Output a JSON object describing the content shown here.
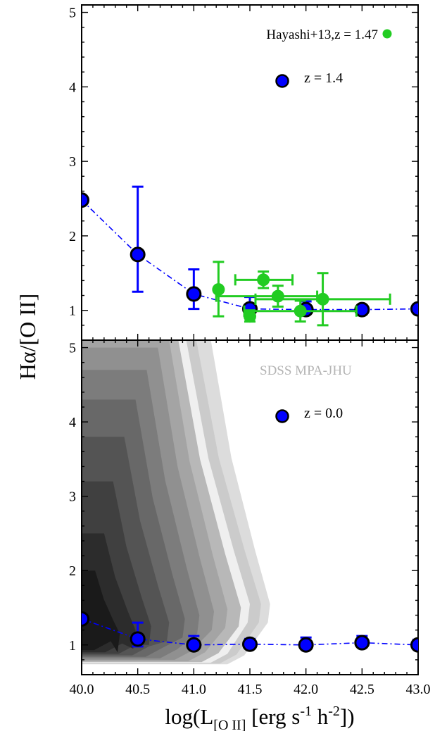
{
  "chart_data": [
    {
      "type": "scatter",
      "panel": "top",
      "x_ticks": [
        "40.0",
        "40.5",
        "41.0",
        "41.5",
        "42.0",
        "42.5",
        "43.0"
      ],
      "y_ticks": [
        "1",
        "2",
        "3",
        "4",
        "5"
      ],
      "xlim": [
        40.0,
        43.0
      ],
      "ylim": [
        0.6,
        5.1
      ],
      "series": [
        {
          "name": "z = 1.4",
          "color": "#0000ff",
          "marker": "blue-circle-black-edge",
          "line": "dash-dot",
          "points": [
            {
              "x": 40.0,
              "y": 2.48
            },
            {
              "x": 40.5,
              "y": 1.75,
              "yerr_lo": 1.25,
              "yerr_hi": 2.66
            },
            {
              "x": 41.0,
              "y": 1.22,
              "yerr_lo": 1.02,
              "yerr_hi": 1.55
            },
            {
              "x": 41.5,
              "y": 1.02,
              "yerr_lo": 0.92,
              "yerr_hi": 1.18
            },
            {
              "x": 42.0,
              "y": 1.01,
              "yerr_lo": 0.96,
              "yerr_hi": 1.12
            },
            {
              "x": 42.5,
              "y": 1.01
            },
            {
              "x": 43.0,
              "y": 1.02
            }
          ]
        },
        {
          "name": "Hayashi+13,z = 1.47",
          "color": "#22cc22",
          "marker": "green-circle",
          "points": [
            {
              "x": 41.22,
              "y": 1.28,
              "yerr_lo": 0.92,
              "yerr_hi": 1.65,
              "xerr_lo": 41.22,
              "xerr_hi": 41.22
            },
            {
              "x": 41.5,
              "y": 0.92,
              "yerr_lo": 0.85,
              "yerr_hi": 1.0,
              "xerr_lo": 41.5,
              "xerr_hi": 41.5
            },
            {
              "x": 41.62,
              "y": 1.41,
              "yerr_lo": 1.3,
              "yerr_hi": 1.52,
              "xerr_lo": 41.37,
              "xerr_hi": 41.88
            },
            {
              "x": 41.75,
              "y": 1.19,
              "yerr_lo": 1.05,
              "yerr_hi": 1.33,
              "xerr_lo": 41.2,
              "xerr_hi": 42.1
            },
            {
              "x": 41.95,
              "y": 0.99,
              "yerr_lo": 0.85,
              "yerr_hi": 1.13,
              "xerr_lo": 41.45,
              "xerr_hi": 42.45
            },
            {
              "x": 42.15,
              "y": 1.15,
              "yerr_lo": 0.8,
              "yerr_hi": 1.5,
              "xerr_lo": 41.55,
              "xerr_hi": 42.75
            }
          ]
        }
      ],
      "legend": [
        {
          "text": "Hayashi+13,z = 1.47",
          "marker": "green-circle",
          "placement": "top-right"
        },
        {
          "text": "z = 1.4",
          "marker": "blue-circle",
          "placement": "upper-middle"
        }
      ]
    },
    {
      "type": "scatter",
      "panel": "bottom",
      "x_ticks": [
        "40.0",
        "40.5",
        "41.0",
        "41.5",
        "42.0",
        "42.5",
        "43.0"
      ],
      "y_ticks": [
        "1",
        "2",
        "3",
        "4",
        "5"
      ],
      "xlim": [
        40.0,
        43.0
      ],
      "ylim": [
        0.6,
        5.1
      ],
      "series": [
        {
          "name": "z = 0.0",
          "color": "#0000ff",
          "marker": "blue-circle-black-edge",
          "line": "dash-dot",
          "points": [
            {
              "x": 40.0,
              "y": 1.35
            },
            {
              "x": 40.5,
              "y": 1.08,
              "yerr_lo": 0.98,
              "yerr_hi": 1.3
            },
            {
              "x": 41.0,
              "y": 1.0,
              "yerr_lo": 0.95,
              "yerr_hi": 1.12
            },
            {
              "x": 41.5,
              "y": 1.01,
              "yerr_lo": 0.97,
              "yerr_hi": 1.08
            },
            {
              "x": 42.0,
              "y": 1.0,
              "yerr_lo": 0.96,
              "yerr_hi": 1.1
            },
            {
              "x": 42.5,
              "y": 1.03,
              "yerr_lo": 0.98,
              "yerr_hi": 1.12
            },
            {
              "x": 43.0,
              "y": 1.0,
              "yerr_lo": 0.96,
              "yerr_hi": 1.07
            }
          ]
        }
      ],
      "contours": {
        "label": "SDSS MPA-JHU",
        "colors": [
          "#dcdcdc",
          "#cbcbcb",
          "#efefef",
          "#b8b8b8",
          "#a4a4a4",
          "#909090",
          "#7c7c7c",
          "#686868",
          "#545454",
          "#404040",
          "#2c2c2c",
          "#1a1a1a"
        ],
        "levels": [
          {
            "top": 5.12,
            "bottom": 0.74,
            "x_tip": 41.68,
            "y_tip": 1.55,
            "x_top": 41.15,
            "x_bot": 41.45
          },
          {
            "top": 5.12,
            "bottom": 0.75,
            "x_tip": 41.6,
            "y_tip": 1.55,
            "x_top": 41.02,
            "x_bot": 41.38
          },
          {
            "top": 5.12,
            "bottom": 0.76,
            "x_tip": 41.5,
            "y_tip": 1.55,
            "x_top": 40.93,
            "x_bot": 41.3
          },
          {
            "top": 5.12,
            "bottom": 0.77,
            "x_tip": 41.42,
            "y_tip": 1.5,
            "x_top": 40.86,
            "x_bot": 41.22
          },
          {
            "top": 5.1,
            "bottom": 0.78,
            "x_tip": 41.3,
            "y_tip": 1.48,
            "x_top": 40.78,
            "x_bot": 41.1
          },
          {
            "top": 5.0,
            "bottom": 0.8,
            "x_tip": 41.18,
            "y_tip": 1.45,
            "x_top": 40.68,
            "x_bot": 40.98
          },
          {
            "top": 4.7,
            "bottom": 0.82,
            "x_tip": 41.05,
            "y_tip": 1.4,
            "x_top": 40.58,
            "x_bot": 40.85
          },
          {
            "top": 4.3,
            "bottom": 0.84,
            "x_tip": 40.92,
            "y_tip": 1.35,
            "x_top": 40.48,
            "x_bot": 40.72
          },
          {
            "top": 3.8,
            "bottom": 0.86,
            "x_tip": 40.78,
            "y_tip": 1.3,
            "x_top": 40.38,
            "x_bot": 40.6
          },
          {
            "top": 3.2,
            "bottom": 0.88,
            "x_tip": 40.62,
            "y_tip": 1.25,
            "x_top": 40.28,
            "x_bot": 40.48
          },
          {
            "top": 2.5,
            "bottom": 0.9,
            "x_tip": 40.48,
            "y_tip": 1.2,
            "x_top": 40.2,
            "x_bot": 40.36
          },
          {
            "top": 2.0,
            "bottom": 0.93,
            "x_tip": 40.34,
            "y_tip": 1.15,
            "x_top": 40.12,
            "x_bot": 40.26
          }
        ]
      },
      "legend": [
        {
          "text": "z = 0.0",
          "marker": "blue-circle",
          "placement": "upper-middle"
        }
      ]
    }
  ],
  "axes": {
    "ylabel": "Hα/[O II]",
    "xlabel": {
      "prefix": "log(L",
      "sub1": "[O II]",
      "mid1": " [erg s",
      "sup1": "-1",
      "mid2": " h",
      "sup2": "-2",
      "suffix": "])"
    }
  }
}
